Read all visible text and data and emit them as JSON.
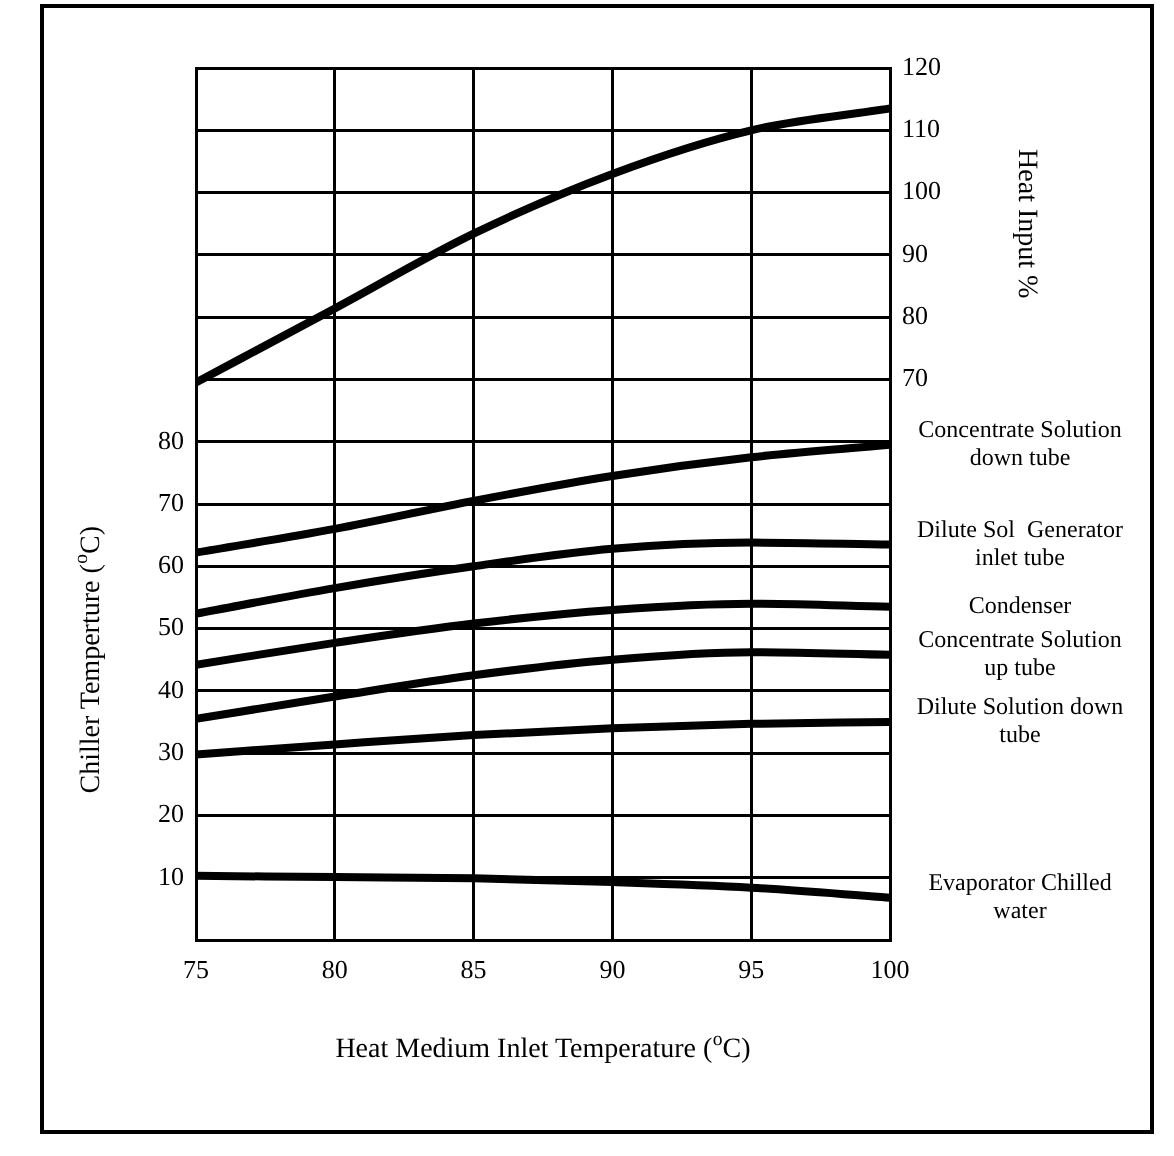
{
  "chart_data": {
    "type": "line",
    "xlabel": "Heat Medium Inlet Temperature ($^{o}$C)",
    "ylabel": "Chiller Temperture ($^{o}$C)",
    "y2label": "Heat Input %",
    "x": [
      75,
      80,
      85,
      90,
      95,
      100
    ],
    "xlim": [
      75,
      100
    ],
    "xticks": [
      75,
      80,
      85,
      90,
      95,
      100
    ],
    "ylim": [
      0,
      140
    ],
    "yticks": [
      10,
      20,
      30,
      40,
      50,
      60,
      70,
      80
    ],
    "y2lim": [
      -20,
      120
    ],
    "y2ticks": [
      70,
      80,
      90,
      100,
      110,
      120
    ],
    "grid": true,
    "marker": "none",
    "line_style": "solid",
    "series": [
      {
        "color": "#000000",
        "axis": "y2",
        "values": [
          69.5,
          81.4,
          93.4,
          103,
          110,
          113.5
        ]
      },
      {
        "name": "Concentrate Solution down tube",
        "color": "#000000",
        "values": [
          62.2,
          66,
          70.5,
          74.5,
          77.5,
          79.5
        ]
      },
      {
        "name": "Dilute Sol  Generator inlet tube",
        "color": "#000000",
        "values": [
          52.4,
          56.5,
          60,
          62.8,
          63.8,
          63.5
        ]
      },
      {
        "name": "Condenser",
        "color": "#000000",
        "values": [
          44.2,
          47.7,
          50.8,
          53,
          54,
          53.5
        ]
      },
      {
        "name": "Concentrate Solution up tube",
        "color": "#000000",
        "values": [
          35.5,
          39.1,
          42.5,
          45,
          46.2,
          45.8
        ]
      },
      {
        "name": "Dilute Solution down tube",
        "color": "#000000",
        "values": [
          29.8,
          31.4,
          32.9,
          34,
          34.7,
          35
        ]
      },
      {
        "name": "Evaporator Chilled water",
        "color": "#000000",
        "values": [
          10.3,
          10.1,
          9.9,
          9.3,
          8.4,
          6.8
        ]
      }
    ]
  }
}
